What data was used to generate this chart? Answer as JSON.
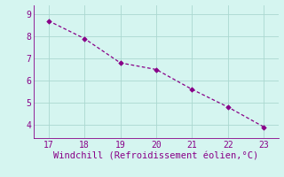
{
  "x": [
    17,
    18,
    19,
    20,
    21,
    22,
    23
  ],
  "y": [
    8.7,
    7.9,
    6.8,
    6.5,
    5.6,
    4.8,
    3.9
  ],
  "xlabel": "Windchill (Refroidissement éolien,°C)",
  "ylim": [
    3.4,
    9.4
  ],
  "xlim": [
    16.6,
    23.4
  ],
  "yticks": [
    4,
    5,
    6,
    7,
    8,
    9
  ],
  "xticks": [
    17,
    18,
    19,
    20,
    21,
    22,
    23
  ],
  "line_color": "#880088",
  "marker_color": "#880088",
  "bg_color": "#d5f5f0",
  "grid_color": "#aad8d0",
  "axis_color": "#880088",
  "tick_color": "#880088",
  "label_color": "#880088",
  "xlabel_fontsize": 7.5,
  "tick_fontsize": 7.0
}
